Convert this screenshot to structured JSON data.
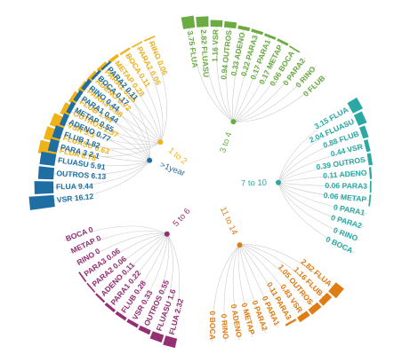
{
  "chart_data": {
    "type": "circular-bar",
    "title": "",
    "groups": [
      {
        "name": "1 to 2",
        "color": "#f0b217",
        "categories": [
          "FLUA",
          "FLUASU",
          "VSR",
          "OUTROS",
          "FLUB",
          "PARA3",
          "ADENO",
          "PARA1",
          "METAP",
          "BOCA",
          "PARA2",
          "RINO"
        ],
        "labels": [
          "FLUA 8.78",
          "FLUASU 6.63",
          "VSR 5.5",
          "OUTROS 2.37",
          "FLUB 1.44",
          "PARA3 0.88",
          "ADENO 0.72",
          "PARA1 0.55",
          "METAP 0.28",
          "BOCA 0.11",
          "PARA2 0.06",
          "RINO 0.06"
        ],
        "values": [
          8.78,
          6.63,
          5.5,
          2.37,
          1.44,
          0.88,
          0.72,
          0.55,
          0.28,
          0.11,
          0.06,
          0.06
        ]
      },
      {
        "name": "3 to 4",
        "color": "#6aab42",
        "categories": [
          "FLUA",
          "FLUASU",
          "VSR",
          "OUTROS",
          "ADENO",
          "PARA3",
          "PARA1",
          "METAP",
          "BOCA",
          "PARA2",
          "RINO",
          "FLUB"
        ],
        "labels": [
          "3.75 FLUA",
          "2.82 FLUASU",
          "1.16 VSR",
          "0.94 OUTROS",
          "0.33 ADENO",
          "0.22 PARA3",
          "0.17 PARA1",
          "0.17 METAP",
          "0.06 BOCA",
          "0 PARA2",
          "0 RINO",
          "0 FLUB"
        ],
        "values": [
          3.75,
          2.82,
          1.16,
          0.94,
          0.33,
          0.22,
          0.17,
          0.17,
          0.06,
          0,
          0,
          0
        ]
      },
      {
        "name": "7 to 10",
        "color": "#2aa8a4",
        "categories": [
          "FLUA",
          "FLUASU",
          "FLUB",
          "VSR",
          "OUTROS",
          "ADENO",
          "PARA3",
          "METAP",
          "PARA1",
          "PARA2",
          "RINO",
          "BOCA"
        ],
        "labels": [
          "3.15 FLUA",
          "2.04 FLUASU",
          "0.88 FLUB",
          "0.44 VSR",
          "0.39 OUTROS",
          "0.11 ADENO",
          "0.06 PARA3",
          "0.06 METAP",
          "0 PARA1",
          "0 PARA2",
          "0 RINO",
          "0 BOCA"
        ],
        "values": [
          3.15,
          2.04,
          0.88,
          0.44,
          0.39,
          0.11,
          0.06,
          0.06,
          0,
          0,
          0,
          0
        ]
      },
      {
        "name": "11 to 14",
        "color": "#e07c12",
        "categories": [
          "FLUA",
          "FLUB",
          "OUTROS",
          "VSR",
          "PARA3",
          "PARA1",
          "PARA2",
          "METAP",
          "ADENO",
          "RINO",
          "BOCA"
        ],
        "labels": [
          "2.82 FLUA",
          "1.16 FLUB",
          "1.05 OUTROS",
          "0.83 VSR",
          "0.11 PARA3",
          "0 PARA1",
          "0 PARA2",
          "0 METAP",
          "0 ADENO",
          "0 RINO",
          "0 BOCA"
        ],
        "values": [
          2.82,
          1.16,
          1.05,
          0.83,
          0.11,
          0,
          0,
          0,
          0,
          0,
          0
        ]
      },
      {
        "name": "5 to 6",
        "color": "#952f73",
        "categories": [
          "FLUA",
          "FLUASU",
          "OUTROS",
          "VSR",
          "FLUB",
          "PARA1",
          "ADENO",
          "PARA2",
          "PARA3",
          "RINO",
          "METAP",
          "BOCA"
        ],
        "labels": [
          "FLUA 2.32",
          "FLUASU 1.6",
          "OUTROS 0.55",
          "VSR 0.33",
          "FLUB 0.28",
          "PARA1 0.22",
          "ADENO 0.11",
          "PARA2 0.06",
          "PARA3 0.06",
          "RINO 0",
          "METAP 0",
          "BOCA 0"
        ],
        "values": [
          2.32,
          1.6,
          0.55,
          0.33,
          0.28,
          0.22,
          0.11,
          0.06,
          0.06,
          0,
          0,
          0
        ]
      },
      {
        "name": ">1year",
        "color": "#1e6ea3",
        "categories": [
          "VSR",
          "FLUA",
          "OUTROS",
          "FLUASU",
          "PARA3",
          "FLUB",
          "ADENO",
          "METAP",
          "PARA1",
          "RINO",
          "BOCA",
          "PARA2"
        ],
        "labels": [
          "VSR 16.12",
          "FLUA 9.44",
          "OUTROS 6.13",
          "FLUASU 5.91",
          "PARA 3 2.1",
          "FLUB 1.82",
          "ADENO 0.77",
          "METAP 0.55",
          "PARA1 0.44",
          "RINO 0.44",
          "BOCA 0.17",
          "PARA2 0.11"
        ],
        "values": [
          16.12,
          9.44,
          6.13,
          5.91,
          2.1,
          1.82,
          0.77,
          0.55,
          0.44,
          0.44,
          0.17,
          0.11
        ]
      }
    ]
  }
}
